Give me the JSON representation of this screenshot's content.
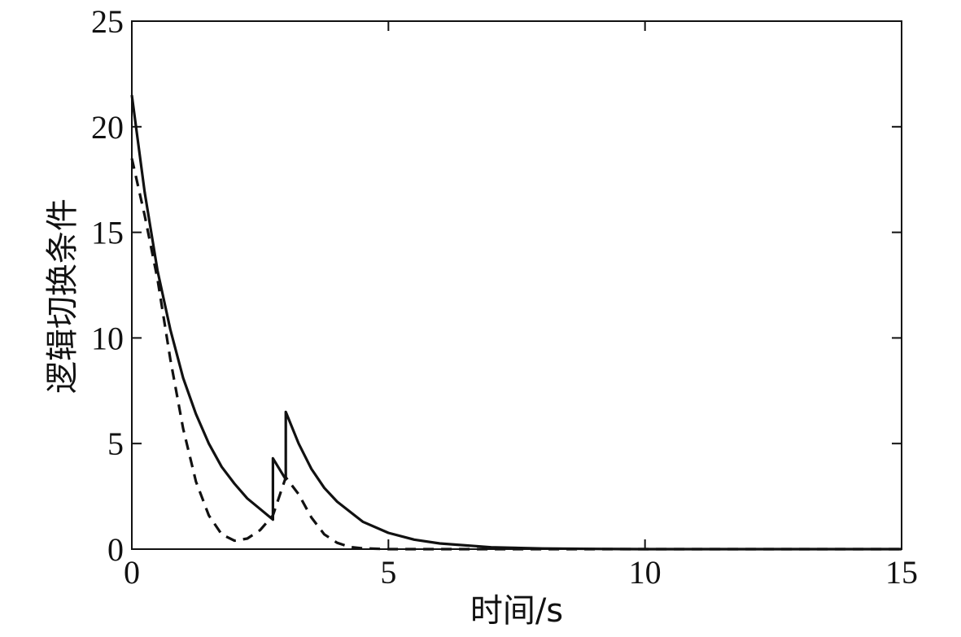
{
  "chart_data": {
    "type": "line",
    "title": "",
    "xlabel": "时间/s",
    "ylabel": "逻辑切换条件",
    "xlim": [
      0,
      15
    ],
    "ylim": [
      0,
      25
    ],
    "xticks": [
      0,
      5,
      10,
      15
    ],
    "yticks": [
      0,
      5,
      10,
      15,
      20,
      25
    ],
    "grid": false,
    "series": [
      {
        "style": "solid",
        "color": "#111111",
        "x": [
          0,
          0.25,
          0.5,
          0.75,
          1.0,
          1.25,
          1.5,
          1.75,
          2.0,
          2.25,
          2.5,
          2.75,
          2.75,
          3.0,
          3.0,
          3.25,
          3.5,
          3.75,
          4.0,
          4.5,
          5.0,
          5.5,
          6.0,
          7.0,
          8.0,
          9.0,
          10.0,
          12.0,
          15.0
        ],
        "y": [
          21.5,
          16.9,
          13.2,
          10.4,
          8.1,
          6.4,
          5.0,
          3.9,
          3.1,
          2.4,
          1.9,
          1.4,
          4.3,
          3.3,
          6.5,
          5.0,
          3.8,
          2.9,
          2.25,
          1.3,
          0.77,
          0.45,
          0.27,
          0.09,
          0.03,
          0.01,
          0.0,
          0.0,
          0.0
        ]
      },
      {
        "style": "dashed",
        "color": "#111111",
        "x": [
          0,
          0.25,
          0.5,
          0.75,
          1.0,
          1.25,
          1.5,
          1.75,
          2.0,
          2.25,
          2.5,
          2.75,
          3.0,
          3.25,
          3.5,
          3.75,
          4.0,
          4.25,
          4.5,
          5.0,
          6.0,
          8.0,
          10.0,
          15.0
        ],
        "y": [
          18.5,
          15.8,
          12.8,
          9.0,
          5.7,
          3.2,
          1.6,
          0.7,
          0.4,
          0.5,
          0.9,
          1.6,
          3.4,
          2.6,
          1.5,
          0.7,
          0.3,
          0.1,
          0.04,
          0.0,
          0.0,
          0.0,
          0.0,
          0.0
        ]
      }
    ]
  }
}
